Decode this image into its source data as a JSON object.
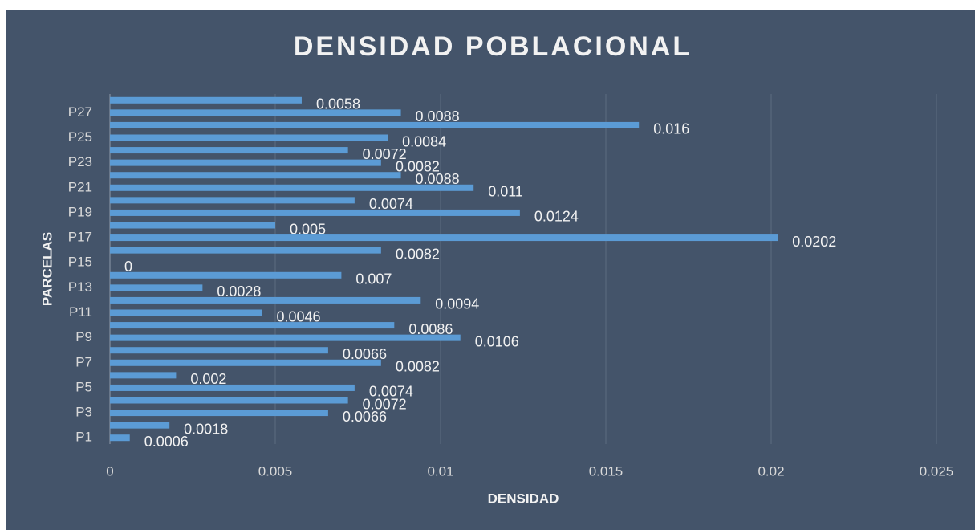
{
  "chart_data": {
    "type": "barh",
    "title": "DENSIDAD POBLACIONAL",
    "x_label": "DENSIDAD",
    "y_label": "PARCELAS",
    "categories": [
      "P1",
      null,
      "P3",
      null,
      "P5",
      null,
      "P7",
      null,
      "P9",
      null,
      "P11",
      null,
      "P13",
      null,
      "P15",
      null,
      "P17",
      null,
      "P19",
      null,
      "P21",
      null,
      "P23",
      null,
      "P25",
      null,
      "P27",
      null
    ],
    "values": [
      0.0006,
      0.0018,
      0.0066,
      0.0072,
      0.0074,
      0.002,
      0.0082,
      0.0066,
      0.0106,
      0.0086,
      0.0046,
      0.0094,
      0.0028,
      0.007,
      0,
      0.0082,
      0.0202,
      0.005,
      0.0124,
      0.0074,
      0.011,
      0.0088,
      0.0082,
      0.0072,
      0.0084,
      0.016,
      0.0088,
      0.0058
    ],
    "color": "#5b9bd5",
    "xlim": [
      0,
      0.025
    ],
    "xticks": [
      0,
      0.005,
      0.01,
      0.015,
      0.02,
      0.025
    ],
    "grid": true,
    "data_labels": true
  }
}
